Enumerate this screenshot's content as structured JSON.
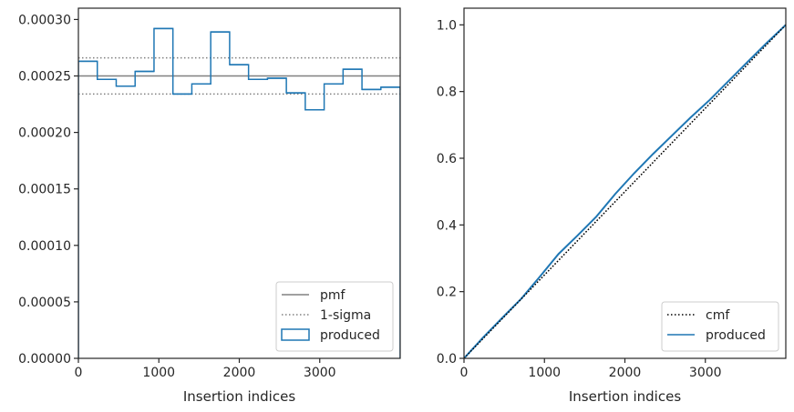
{
  "chart_data": [
    {
      "type": "step",
      "panel": "left",
      "xlabel": "Insertion indices",
      "ylabel": "",
      "xlim": [
        0,
        4000
      ],
      "ylim": [
        0,
        0.00031
      ],
      "xticks": [
        "0",
        "1000",
        "2000",
        "3000"
      ],
      "xtick_values": [
        0,
        1000,
        2000,
        3000
      ],
      "yticks": [
        "0.00000",
        "0.00005",
        "0.00010",
        "0.00015",
        "0.00020",
        "0.00025",
        "0.00030"
      ],
      "ytick_values": [
        0,
        5e-05,
        0.0001,
        0.00015,
        0.0002,
        0.00025,
        0.0003
      ],
      "grid": false,
      "legend_position": "lower-right",
      "legend": [
        "pmf",
        "1-sigma",
        "produced"
      ],
      "series": [
        {
          "name": "pmf",
          "style": "solid",
          "color": "#808080",
          "y": 0.00025
        },
        {
          "name": "1-sigma",
          "style": "dotted",
          "color": "#808080",
          "y_values": [
            0.000234,
            0.000266
          ]
        },
        {
          "name": "produced",
          "style": "step",
          "color": "#1f77b4",
          "bin_edges": [
            0,
            235,
            470,
            705,
            940,
            1175,
            1410,
            1645,
            1880,
            2115,
            2350,
            2585,
            2820,
            3055,
            3290,
            3525,
            3760,
            4000
          ],
          "values": [
            0.000263,
            0.000247,
            0.000241,
            0.000254,
            0.000292,
            0.000234,
            0.000243,
            0.000289,
            0.00026,
            0.000247,
            0.000248,
            0.000235,
            0.00022,
            0.000243,
            0.000256,
            0.000238,
            0.00024
          ]
        }
      ]
    },
    {
      "type": "line",
      "panel": "right",
      "xlabel": "Insertion indices",
      "ylabel": "",
      "xlim": [
        0,
        4000
      ],
      "ylim": [
        0,
        1.05
      ],
      "xticks": [
        "0",
        "1000",
        "2000",
        "3000"
      ],
      "xtick_values": [
        0,
        1000,
        2000,
        3000
      ],
      "yticks": [
        "0.0",
        "0.2",
        "0.4",
        "0.6",
        "0.8",
        "1.0"
      ],
      "ytick_values": [
        0,
        0.2,
        0.4,
        0.6,
        0.8,
        1.0
      ],
      "grid": false,
      "legend_position": "lower-right",
      "legend": [
        "cmf",
        "produced"
      ],
      "series": [
        {
          "name": "cmf",
          "style": "dotted",
          "color": "#000000",
          "x": [
            0,
            4000
          ],
          "y": [
            0,
            1
          ]
        },
        {
          "name": "produced",
          "style": "solid",
          "color": "#1f77b4",
          "x": [
            0,
            235,
            470,
            705,
            940,
            1175,
            1410,
            1645,
            1880,
            2115,
            2350,
            2585,
            2820,
            3055,
            3290,
            3525,
            3760,
            4000
          ],
          "y": [
            0,
            0.062,
            0.12,
            0.177,
            0.244,
            0.313,
            0.368,
            0.425,
            0.493,
            0.555,
            0.613,
            0.668,
            0.723,
            0.775,
            0.832,
            0.889,
            0.945,
            1.0
          ]
        }
      ]
    }
  ]
}
